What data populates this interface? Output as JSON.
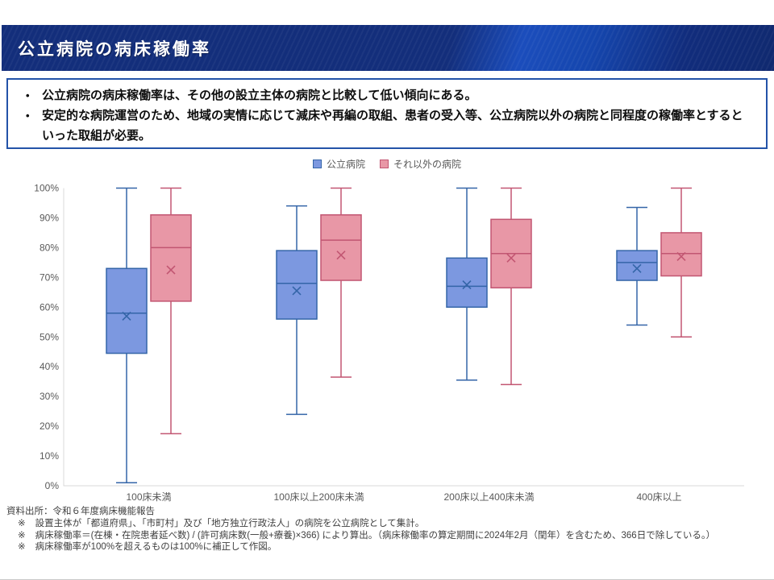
{
  "header": {
    "title": "公立病院の病床稼働率"
  },
  "callout": {
    "bullets": [
      "公立病院の病床稼働率は、その他の設立主体の病院と比較して低い傾向にある。",
      "安定的な病院運営のため、地域の実情に応じて減床や再編の取組、患者の受入等、公立病院以外の病院と同程度の稼働率とするといった取組が必要。"
    ]
  },
  "theme": {
    "banner_navy": "#132E7B",
    "banner_accent": "#1B4DBC",
    "callout_border": "#2353A8",
    "label_gray": "#595959",
    "axis_line": "#D9D9D9",
    "note_color": "#404040",
    "page_edge": "#C9C9C9"
  },
  "chart_data": {
    "type": "boxplot",
    "title": "",
    "categories": [
      "100床未満",
      "100床以上200床未満",
      "200床以上400床未満",
      "400床以上"
    ],
    "ylim": [
      0,
      100
    ],
    "ytick_step": 10,
    "ytick_suffix": "%",
    "grid": false,
    "legend_position": "top-center",
    "series": [
      {
        "name": "公立病院",
        "fill": "#7C98E0",
        "border": "#3465A8",
        "values": [
          {
            "min": 1,
            "q1": 44.5,
            "median": 58,
            "mean": 57,
            "q3": 73,
            "max": 100
          },
          {
            "min": 24,
            "q1": 56,
            "median": 68,
            "mean": 65.5,
            "q3": 79,
            "max": 94
          },
          {
            "min": 35.5,
            "q1": 60,
            "median": 67,
            "mean": 67.5,
            "q3": 76.5,
            "max": 100
          },
          {
            "min": 54,
            "q1": 69,
            "median": 75,
            "mean": 73,
            "q3": 79,
            "max": 93.5
          }
        ]
      },
      {
        "name": "それ以外の病院",
        "fill": "#E897A6",
        "border": "#C25672",
        "values": [
          {
            "min": 17.5,
            "q1": 62,
            "median": 80,
            "mean": 72.5,
            "q3": 91,
            "max": 100
          },
          {
            "min": 36.5,
            "q1": 69,
            "median": 82.5,
            "mean": 77.5,
            "q3": 91,
            "max": 100
          },
          {
            "min": 34,
            "q1": 66.5,
            "median": 78,
            "mean": 76.5,
            "q3": 89.5,
            "max": 100
          },
          {
            "min": 50,
            "q1": 70.5,
            "median": 78,
            "mean": 77,
            "q3": 85,
            "max": 100
          }
        ]
      }
    ]
  },
  "footer": {
    "source": "資料出所：令和６年度病床機能報告",
    "note_marker": "※",
    "notes": [
      "設置主体が「都道府県」、「市町村」及び「地方独立行政法人」の病院を公立病院として集計。",
      "病床稼働率＝(在棟・在院患者延べ数) / (許可病床数(一般+療養)×366) により算出。（病床稼働率の算定期間に2024年2月（閏年）を含むため、366日で除している。）",
      "病床稼働率が100%を超えるものは100%に補正して作図。"
    ]
  }
}
